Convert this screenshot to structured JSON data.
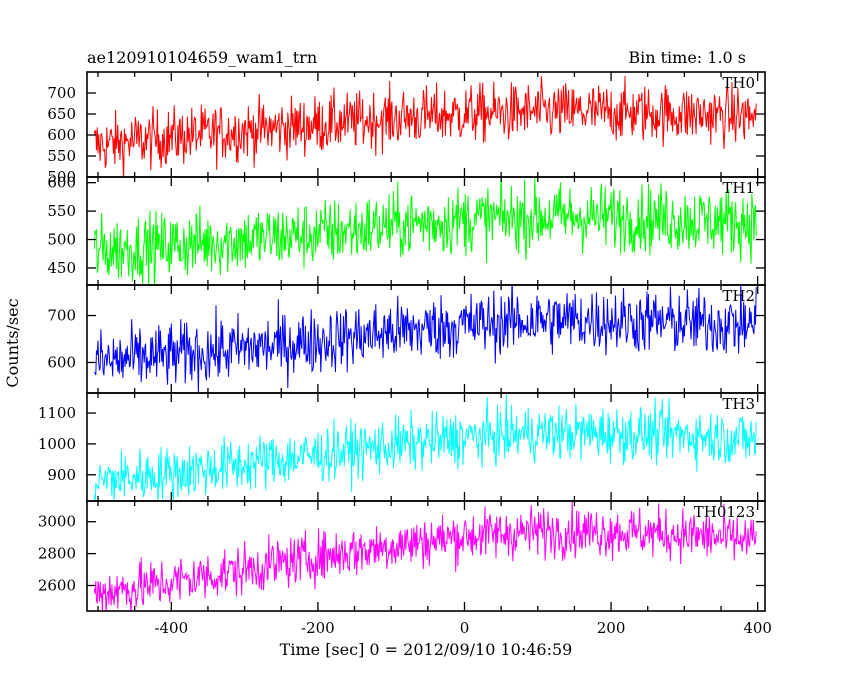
{
  "header": {
    "title": "ae120910104659_wam1_trn",
    "bin_time": "Bin time: 1.0 s"
  },
  "axes": {
    "xlabel": "Time [sec] 0 = 2012/09/10 10:46:59",
    "ylabel": "Counts/sec"
  },
  "chart_data": {
    "type": "line",
    "x_range": [
      -515,
      410
    ],
    "x_ticks": [
      -400,
      -200,
      0,
      200,
      400
    ],
    "x_data_extent": [
      -505,
      398
    ],
    "bin_seconds": 1.0,
    "grid": false,
    "series": [
      {
        "name": "TH0",
        "color": "#ff0000",
        "ylim": [
          500,
          750
        ],
        "yticks": [
          500,
          550,
          600,
          650,
          700
        ],
        "trend_x": [
          -505,
          -400,
          -300,
          -200,
          -100,
          0,
          100,
          200,
          300,
          398
        ],
        "trend_y": [
          575,
          595,
          610,
          625,
          640,
          650,
          655,
          655,
          650,
          645
        ],
        "noise": 35
      },
      {
        "name": "TH1",
        "color": "#00ff00",
        "ylim": [
          420,
          610
        ],
        "yticks": [
          450,
          500,
          550,
          600
        ],
        "trend_x": [
          -505,
          -400,
          -300,
          -200,
          -100,
          0,
          100,
          200,
          300,
          398
        ],
        "trend_y": [
          480,
          490,
          500,
          510,
          525,
          535,
          540,
          540,
          535,
          530
        ],
        "noise": 30
      },
      {
        "name": "TH2",
        "color": "#0000ff",
        "ylim": [
          535,
          765
        ],
        "yticks": [
          600,
          700
        ],
        "trend_x": [
          -505,
          -400,
          -300,
          -200,
          -100,
          0,
          100,
          200,
          300,
          398
        ],
        "trend_y": [
          600,
          615,
          630,
          645,
          665,
          680,
          690,
          690,
          685,
          680
        ],
        "noise": 35
      },
      {
        "name": "TH3",
        "color": "#00ffff",
        "ylim": [
          815,
          1165
        ],
        "yticks": [
          900,
          1000,
          1100
        ],
        "trend_x": [
          -505,
          -400,
          -300,
          -200,
          -100,
          0,
          100,
          200,
          300,
          398
        ],
        "trend_y": [
          880,
          905,
          935,
          965,
          995,
          1020,
          1035,
          1035,
          1030,
          1015
        ],
        "noise": 45
      },
      {
        "name": "TH0123",
        "color": "#ff00ff",
        "ylim": [
          2440,
          3130
        ],
        "yticks": [
          2600,
          2800,
          3000
        ],
        "trend_x": [
          -505,
          -400,
          -300,
          -200,
          -100,
          0,
          100,
          200,
          300,
          398
        ],
        "trend_y": [
          2550,
          2620,
          2700,
          2780,
          2850,
          2910,
          2940,
          2940,
          2920,
          2880
        ],
        "noise": 80
      }
    ]
  }
}
